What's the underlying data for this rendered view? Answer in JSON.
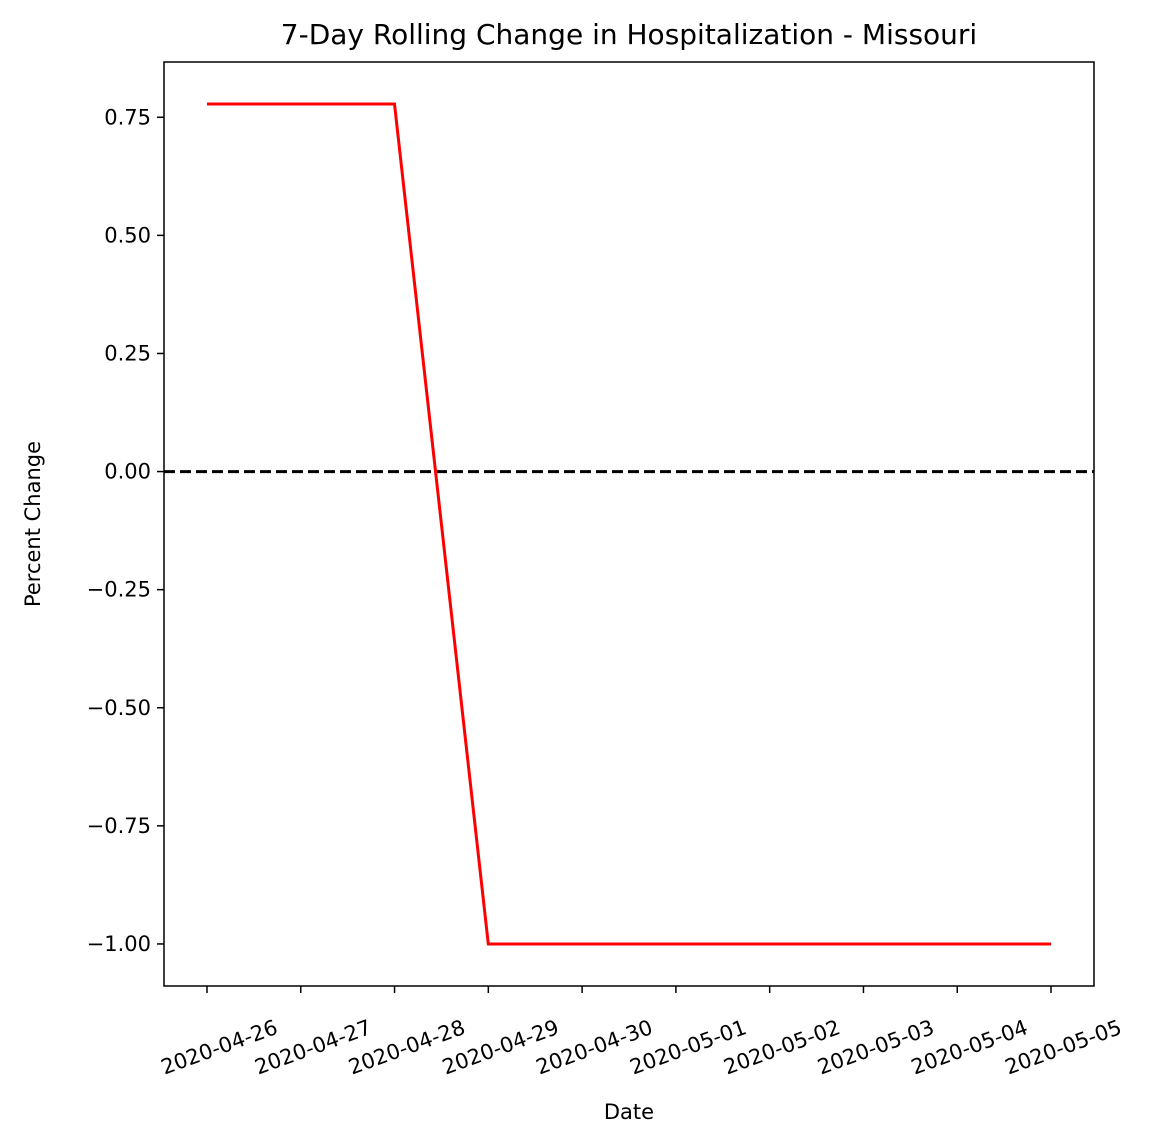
{
  "chart_data": {
    "type": "line",
    "title": "7-Day Rolling Change in Hospitalization - Missouri",
    "xlabel": "Date",
    "ylabel": "Percent Change",
    "x": [
      "2020-04-26",
      "2020-04-27",
      "2020-04-28",
      "2020-04-29",
      "2020-04-30",
      "2020-05-01",
      "2020-05-02",
      "2020-05-03",
      "2020-05-04",
      "2020-05-05"
    ],
    "series": [
      {
        "values": [
          0.778,
          0.778,
          0.778,
          -1.0,
          -1.0,
          -1.0,
          -1.0,
          -1.0,
          -1.0,
          -1.0
        ],
        "color": "#ff0000"
      }
    ],
    "reference_line": {
      "y": 0.0,
      "style": "dashed",
      "color": "#000000"
    },
    "yticks": [
      0.75,
      0.5,
      0.25,
      0.0,
      -0.25,
      -0.5,
      -0.75,
      -1.0
    ],
    "ytick_labels": [
      "0.75",
      "0.50",
      "0.25",
      "0.00",
      "−0.25",
      "−0.50",
      "−0.75",
      "−1.00"
    ],
    "ylim": [
      -1.089,
      0.867
    ],
    "xlim": [
      "2020-04-25 13:00",
      "2020-05-05 11:00"
    ],
    "grid": false,
    "legend": "none"
  }
}
